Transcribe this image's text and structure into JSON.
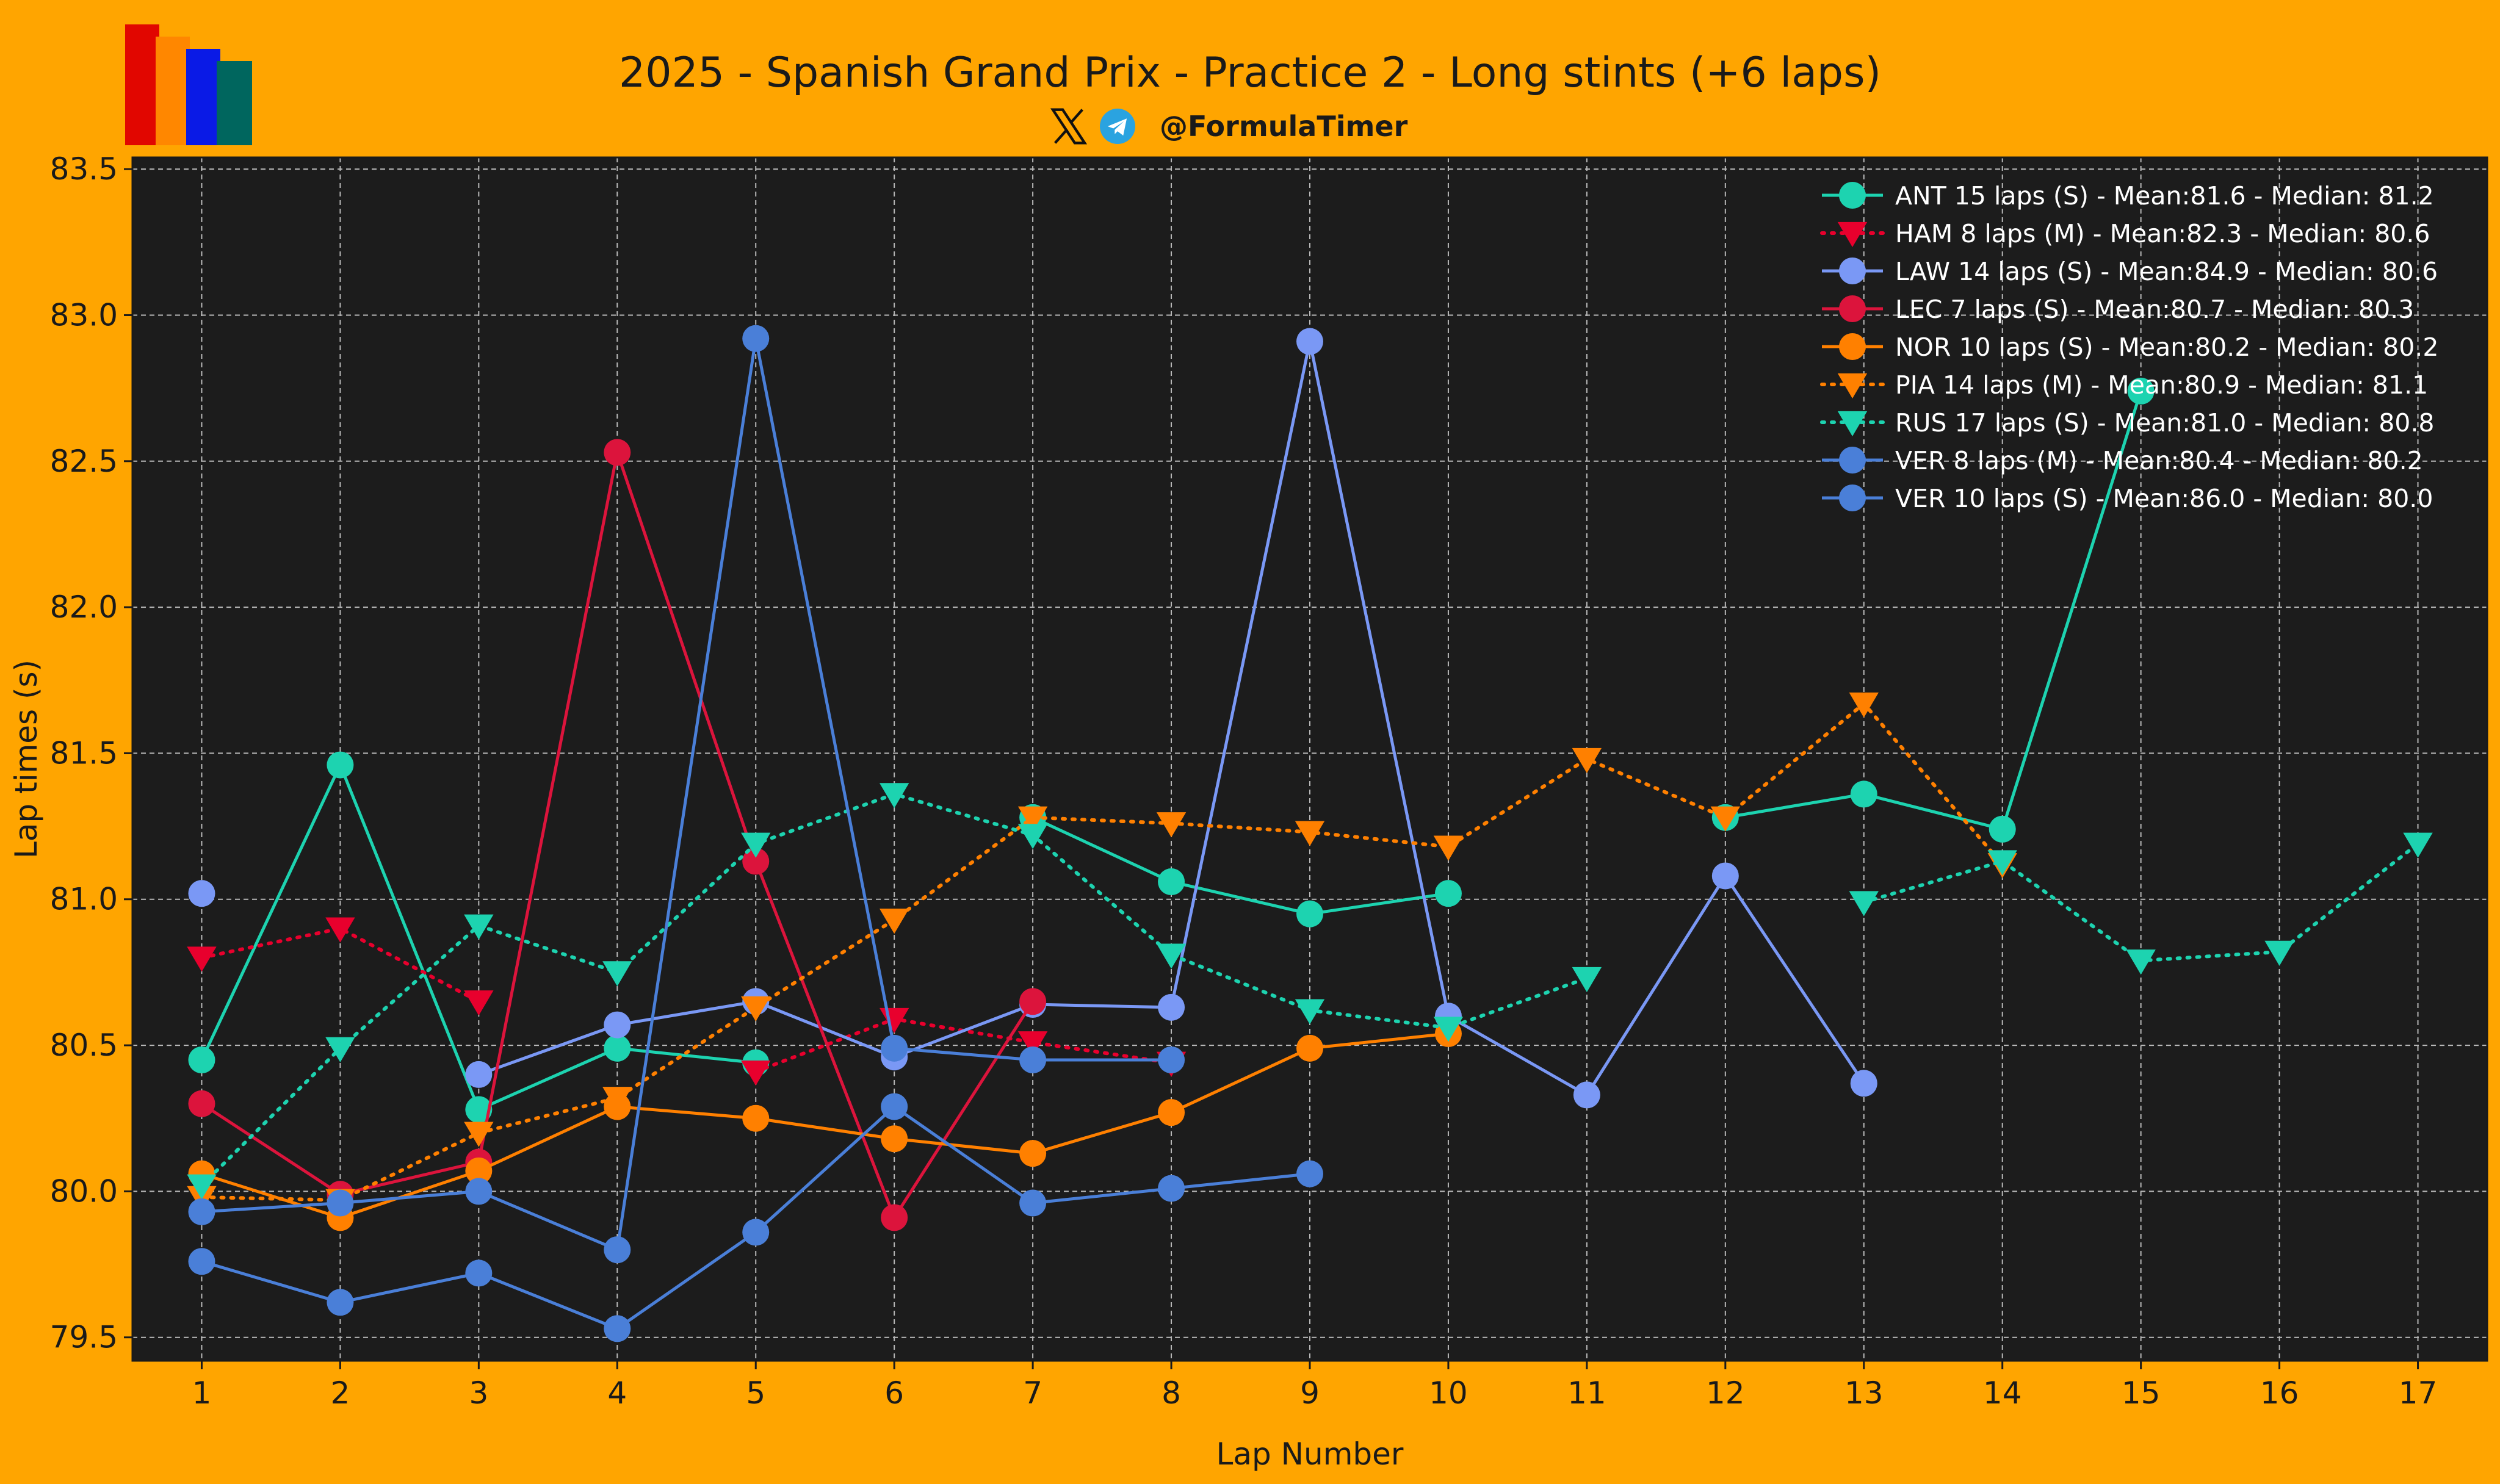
{
  "header": {
    "title": "2025 - Spanish Grand Prix - Practice 2 - Long stints (+6 laps)",
    "handle": "@FormulaTimer",
    "icons": [
      "x-logo-icon",
      "telegram-icon"
    ],
    "logo_colors": [
      "#E10600",
      "#FF8700",
      "#0A1AE6",
      "#00665E"
    ]
  },
  "chart_data": {
    "type": "line",
    "title": "2025 - Spanish Grand Prix - Practice 2 - Long stints (+6 laps)",
    "xlabel": "Lap Number",
    "ylabel": "Lap times (s)",
    "xlim": [
      0.5,
      17.5
    ],
    "ylim": [
      79.42,
      83.54
    ],
    "xticks": [
      1,
      2,
      3,
      4,
      5,
      6,
      7,
      8,
      9,
      10,
      11,
      12,
      13,
      14,
      15,
      16,
      17
    ],
    "yticks": [
      79.5,
      80.0,
      80.5,
      81.0,
      81.5,
      82.0,
      82.5,
      83.0,
      83.5
    ],
    "grid": true,
    "legend_position": "top-right",
    "background": "#1C1C1C",
    "series": [
      {
        "name": "ANT 15 laps (S) - Mean:81.6 - Median: 81.2",
        "color": "#1DD3B0",
        "marker": "circle",
        "linestyle": "solid",
        "x": [
          1,
          2,
          3,
          4,
          5,
          6,
          7,
          8,
          9,
          10,
          11,
          12,
          13,
          14,
          15
        ],
        "y": [
          80.45,
          81.46,
          80.28,
          80.49,
          80.44,
          null,
          81.28,
          81.06,
          80.95,
          81.02,
          null,
          81.28,
          81.36,
          81.24,
          82.74
        ]
      },
      {
        "name": "HAM 8 laps (M) - Mean:82.3 - Median: 80.6",
        "color": "#E8002D",
        "marker": "triangle-down",
        "linestyle": "dotted",
        "x": [
          1,
          2,
          3,
          4,
          5,
          6,
          7,
          8
        ],
        "y": [
          80.8,
          80.9,
          80.65,
          null,
          80.41,
          80.59,
          80.51,
          80.44
        ]
      },
      {
        "name": "LAW 14 laps (S) - Mean:84.9 - Median: 80.6",
        "color": "#7A98F5",
        "marker": "circle",
        "linestyle": "solid",
        "x": [
          1,
          2,
          3,
          4,
          5,
          6,
          7,
          8,
          9,
          10,
          11,
          12,
          13,
          14
        ],
        "y": [
          81.02,
          null,
          80.4,
          80.57,
          80.65,
          80.46,
          80.64,
          80.63,
          82.91,
          80.6,
          80.33,
          81.08,
          80.37,
          null
        ]
      },
      {
        "name": "LEC 7 laps (S) - Mean:80.7 - Median: 80.3",
        "color": "#DC143C",
        "marker": "circle",
        "linestyle": "solid",
        "x": [
          1,
          2,
          3,
          4,
          5,
          6,
          7
        ],
        "y": [
          80.3,
          79.99,
          80.1,
          82.53,
          81.13,
          79.91,
          80.65
        ]
      },
      {
        "name": "NOR 10 laps (S) - Mean:80.2 - Median: 80.2",
        "color": "#FF8000",
        "marker": "circle",
        "linestyle": "solid",
        "x": [
          1,
          2,
          3,
          4,
          5,
          6,
          7,
          8,
          9,
          10
        ],
        "y": [
          80.06,
          79.91,
          80.07,
          80.29,
          80.25,
          80.18,
          80.13,
          80.27,
          80.49,
          80.54
        ]
      },
      {
        "name": "PIA 14 laps (M) - Mean:80.9 - Median: 81.1",
        "color": "#FF8000",
        "marker": "triangle-down",
        "linestyle": "dotted",
        "x": [
          1,
          2,
          3,
          4,
          5,
          6,
          7,
          8,
          9,
          10,
          11,
          12,
          13,
          14
        ],
        "y": [
          79.98,
          79.97,
          80.2,
          80.32,
          80.63,
          80.93,
          81.28,
          81.26,
          81.23,
          81.18,
          81.48,
          81.28,
          81.67,
          81.12
        ]
      },
      {
        "name": "RUS 17 laps (S) - Mean:81.0 - Median: 80.8",
        "color": "#1DD3B0",
        "marker": "triangle-down",
        "linestyle": "dotted",
        "x": [
          1,
          2,
          3,
          4,
          5,
          6,
          7,
          8,
          9,
          10,
          11,
          12,
          13,
          14,
          15,
          16,
          17
        ],
        "y": [
          80.02,
          80.49,
          80.91,
          80.75,
          81.19,
          81.36,
          81.22,
          80.81,
          80.62,
          80.56,
          80.73,
          null,
          80.99,
          81.13,
          80.79,
          80.82,
          81.19
        ]
      },
      {
        "name": "VER 8 laps (M) - Mean:80.4 - Median: 80.2",
        "color": "#4A7FD8",
        "marker": "circle",
        "linestyle": "solid",
        "x": [
          1,
          2,
          3,
          4,
          5,
          6,
          7,
          8
        ],
        "y": [
          79.93,
          79.96,
          80.0,
          79.8,
          82.92,
          80.49,
          80.45,
          80.45
        ]
      },
      {
        "name": "VER 10 laps (S) - Mean:86.0 - Median: 80.0",
        "color": "#4A7FD8",
        "marker": "circle",
        "linestyle": "solid",
        "x": [
          1,
          2,
          3,
          4,
          5,
          6,
          7,
          8,
          9
        ],
        "y": [
          79.76,
          79.62,
          79.72,
          79.53,
          79.86,
          80.29,
          79.96,
          80.01,
          80.06
        ]
      }
    ]
  }
}
